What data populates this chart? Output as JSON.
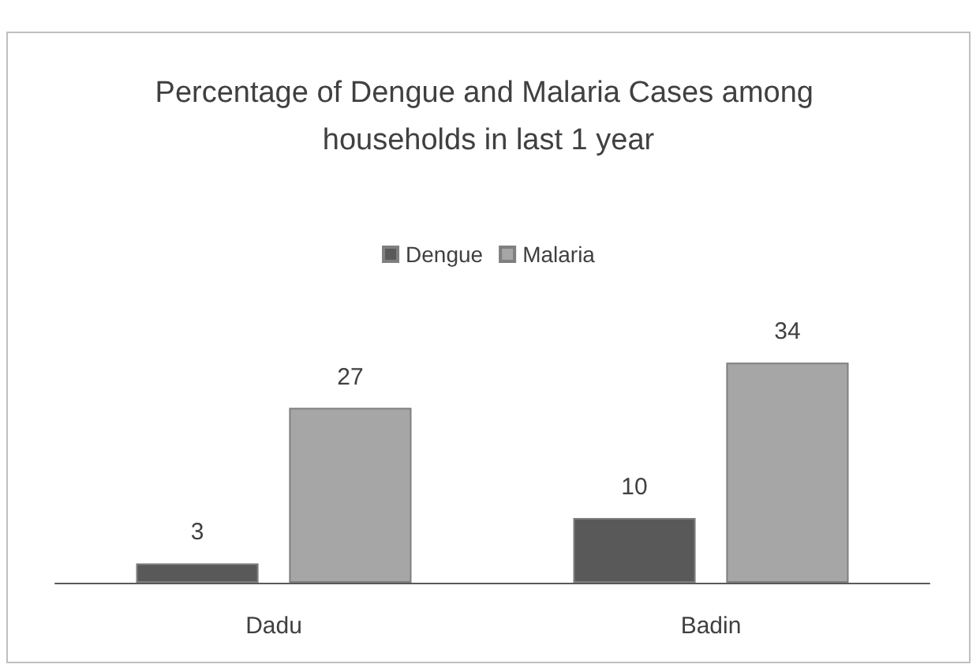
{
  "chart_data": {
    "type": "bar",
    "title": "Percentage of Dengue and Malaria Cases among households in last 1 year",
    "categories": [
      "Dadu",
      "Badin"
    ],
    "series": [
      {
        "name": "Dengue",
        "color": "#595959",
        "values": [
          3,
          10
        ]
      },
      {
        "name": "Malaria",
        "color": "#a6a6a6",
        "values": [
          27,
          34
        ]
      }
    ],
    "data_labels": true,
    "legend": "top",
    "tick_labels": "x"
  }
}
